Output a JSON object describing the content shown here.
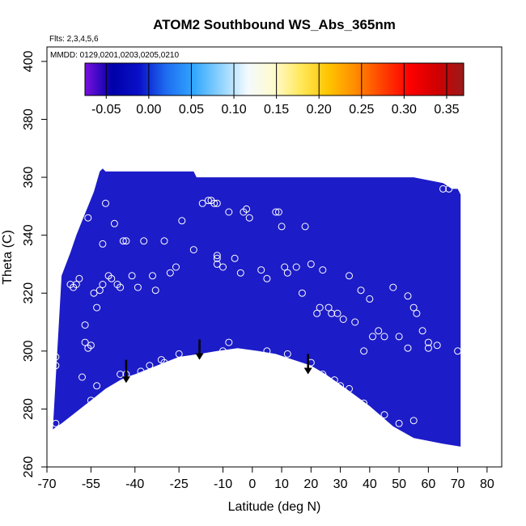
{
  "chart_data": {
    "type": "scatter",
    "title": "ATOM2 Southbound WS_Abs_365nm",
    "flights_note": "Flts: 2,3,4,5,6",
    "dates_note": "MMDD: 0129,0201,0203,0205,0210",
    "xlabel": "Latitude (deg N)",
    "ylabel": "Theta (C)",
    "xlim": [
      -70,
      85
    ],
    "ylim": [
      260,
      405
    ],
    "xticks": [
      -70,
      -55,
      -40,
      -25,
      -10,
      0,
      10,
      20,
      30,
      40,
      50,
      60,
      70,
      80
    ],
    "yticks": [
      260,
      280,
      300,
      320,
      340,
      360,
      380,
      400
    ],
    "colorbar": {
      "min": -0.075,
      "max": 0.37,
      "ticks": [
        "-0.05",
        "0.00",
        "0.05",
        "0.10",
        "0.15",
        "0.20",
        "0.25",
        "0.30",
        "0.35"
      ],
      "tick_values": [
        -0.05,
        0.0,
        0.05,
        0.1,
        0.15,
        0.2,
        0.25,
        0.3,
        0.35
      ],
      "colors": [
        "#7a10e0",
        "#0000a8",
        "#0a10c8",
        "#1e6cf0",
        "#30a6ff",
        "#8cd2ff",
        "#f4faff",
        "#fffacc",
        "#ffe85a",
        "#ffc400",
        "#ff8c00",
        "#ff4000",
        "#ff0000",
        "#d00000",
        "#9a1a1a"
      ]
    },
    "fill_color": "#1c1cc8",
    "boundary": {
      "upper": [
        [
          -65,
          326
        ],
        [
          -62,
          334
        ],
        [
          -60,
          340
        ],
        [
          -58,
          345
        ],
        [
          -56,
          350
        ],
        [
          -54,
          355
        ],
        [
          -52,
          362
        ],
        [
          -51,
          363
        ],
        [
          -50,
          362
        ],
        [
          -20,
          362
        ],
        [
          -19,
          360
        ],
        [
          10,
          360
        ],
        [
          55,
          360
        ],
        [
          65,
          358
        ],
        [
          68,
          356
        ],
        [
          70,
          356
        ],
        [
          71,
          354
        ],
        [
          71,
          300
        ]
      ],
      "lower": [
        [
          71,
          267
        ],
        [
          65,
          268
        ],
        [
          55,
          270
        ],
        [
          48,
          274
        ],
        [
          40,
          281
        ],
        [
          32,
          287
        ],
        [
          25,
          292
        ],
        [
          20,
          295
        ],
        [
          14,
          297
        ],
        [
          8,
          299
        ],
        [
          2,
          300
        ],
        [
          -5,
          301
        ],
        [
          -12,
          300
        ],
        [
          -18,
          299
        ],
        [
          -25,
          298
        ],
        [
          -30,
          296
        ],
        [
          -35,
          294
        ],
        [
          -40,
          292
        ],
        [
          -43,
          291
        ],
        [
          -45,
          290
        ],
        [
          -50,
          287
        ],
        [
          -55,
          283
        ],
        [
          -60,
          279
        ],
        [
          -65,
          275
        ],
        [
          -68,
          273
        ]
      ]
    },
    "arrows": [
      {
        "x": -43,
        "y_top": 297,
        "y_bottom": 289
      },
      {
        "x": -18,
        "y_top": 304,
        "y_bottom": 297
      },
      {
        "x": 19,
        "y_top": 299,
        "y_bottom": 292
      }
    ],
    "sample_points": [
      [
        -67,
        330
      ],
      [
        -66,
        337
      ],
      [
        -66,
        335
      ],
      [
        -67,
        298
      ],
      [
        -67,
        295
      ],
      [
        -67,
        275
      ],
      [
        -62,
        323
      ],
      [
        -61,
        322
      ],
      [
        -60,
        323
      ],
      [
        -59,
        325
      ],
      [
        -57,
        353
      ],
      [
        -56,
        346
      ],
      [
        -54,
        320
      ],
      [
        -53,
        315
      ],
      [
        -52,
        321
      ],
      [
        -51,
        323
      ],
      [
        -51,
        337
      ],
      [
        -50,
        351
      ],
      [
        -49,
        326
      ],
      [
        -48,
        325
      ],
      [
        -47,
        344
      ],
      [
        -46,
        323
      ],
      [
        -45,
        322
      ],
      [
        -44,
        338
      ],
      [
        -43,
        338
      ],
      [
        -41,
        326
      ],
      [
        -39,
        322
      ],
      [
        -37,
        338
      ],
      [
        -34,
        326
      ],
      [
        -33,
        321
      ],
      [
        -30,
        338
      ],
      [
        -28,
        327
      ],
      [
        -26,
        329
      ],
      [
        -24,
        345
      ],
      [
        -20,
        335
      ],
      [
        -17,
        351
      ],
      [
        -15,
        352
      ],
      [
        -14,
        352
      ],
      [
        -13,
        351
      ],
      [
        -12,
        351
      ],
      [
        -12,
        333
      ],
      [
        -12,
        332
      ],
      [
        -12,
        330
      ],
      [
        -10,
        329
      ],
      [
        -8,
        348
      ],
      [
        -6,
        332
      ],
      [
        -4,
        327
      ],
      [
        -3,
        348
      ],
      [
        -2,
        349
      ],
      [
        -1,
        346
      ],
      [
        3,
        328
      ],
      [
        5,
        325
      ],
      [
        8,
        348
      ],
      [
        9,
        348
      ],
      [
        10,
        343
      ],
      [
        11,
        329
      ],
      [
        12,
        327
      ],
      [
        15,
        329
      ],
      [
        17,
        320
      ],
      [
        18,
        343
      ],
      [
        20,
        330
      ],
      [
        22,
        313
      ],
      [
        23,
        315
      ],
      [
        24,
        328
      ],
      [
        26,
        315
      ],
      [
        27,
        313
      ],
      [
        29,
        313
      ],
      [
        31,
        311
      ],
      [
        33,
        326
      ],
      [
        35,
        310
      ],
      [
        37,
        321
      ],
      [
        38,
        300
      ],
      [
        40,
        318
      ],
      [
        41,
        305
      ],
      [
        43,
        307
      ],
      [
        45,
        305
      ],
      [
        48,
        322
      ],
      [
        50,
        305
      ],
      [
        53,
        319
      ],
      [
        55,
        315
      ],
      [
        56,
        313
      ],
      [
        58,
        307
      ],
      [
        60,
        303
      ],
      [
        63,
        302
      ],
      [
        65,
        356
      ],
      [
        67,
        356
      ],
      [
        70,
        300
      ],
      [
        -57,
        309
      ],
      [
        -57,
        303
      ],
      [
        -56,
        301
      ],
      [
        -55,
        302
      ],
      [
        -58,
        291
      ],
      [
        -55,
        283
      ],
      [
        -54,
        281
      ],
      [
        -53,
        288
      ],
      [
        -45,
        292
      ],
      [
        -43,
        292
      ],
      [
        -38,
        293
      ],
      [
        -30,
        296
      ],
      [
        -25,
        299
      ],
      [
        -10,
        300
      ],
      [
        -8,
        303
      ],
      [
        5,
        300
      ],
      [
        12,
        299
      ],
      [
        20,
        296
      ],
      [
        24,
        292
      ],
      [
        28,
        290
      ],
      [
        30,
        288
      ],
      [
        33,
        287
      ],
      [
        38,
        282
      ],
      [
        45,
        278
      ],
      [
        50,
        275
      ],
      [
        55,
        276
      ],
      [
        60,
        301
      ],
      [
        53,
        301
      ],
      [
        -35,
        295
      ],
      [
        -31,
        297
      ]
    ]
  }
}
